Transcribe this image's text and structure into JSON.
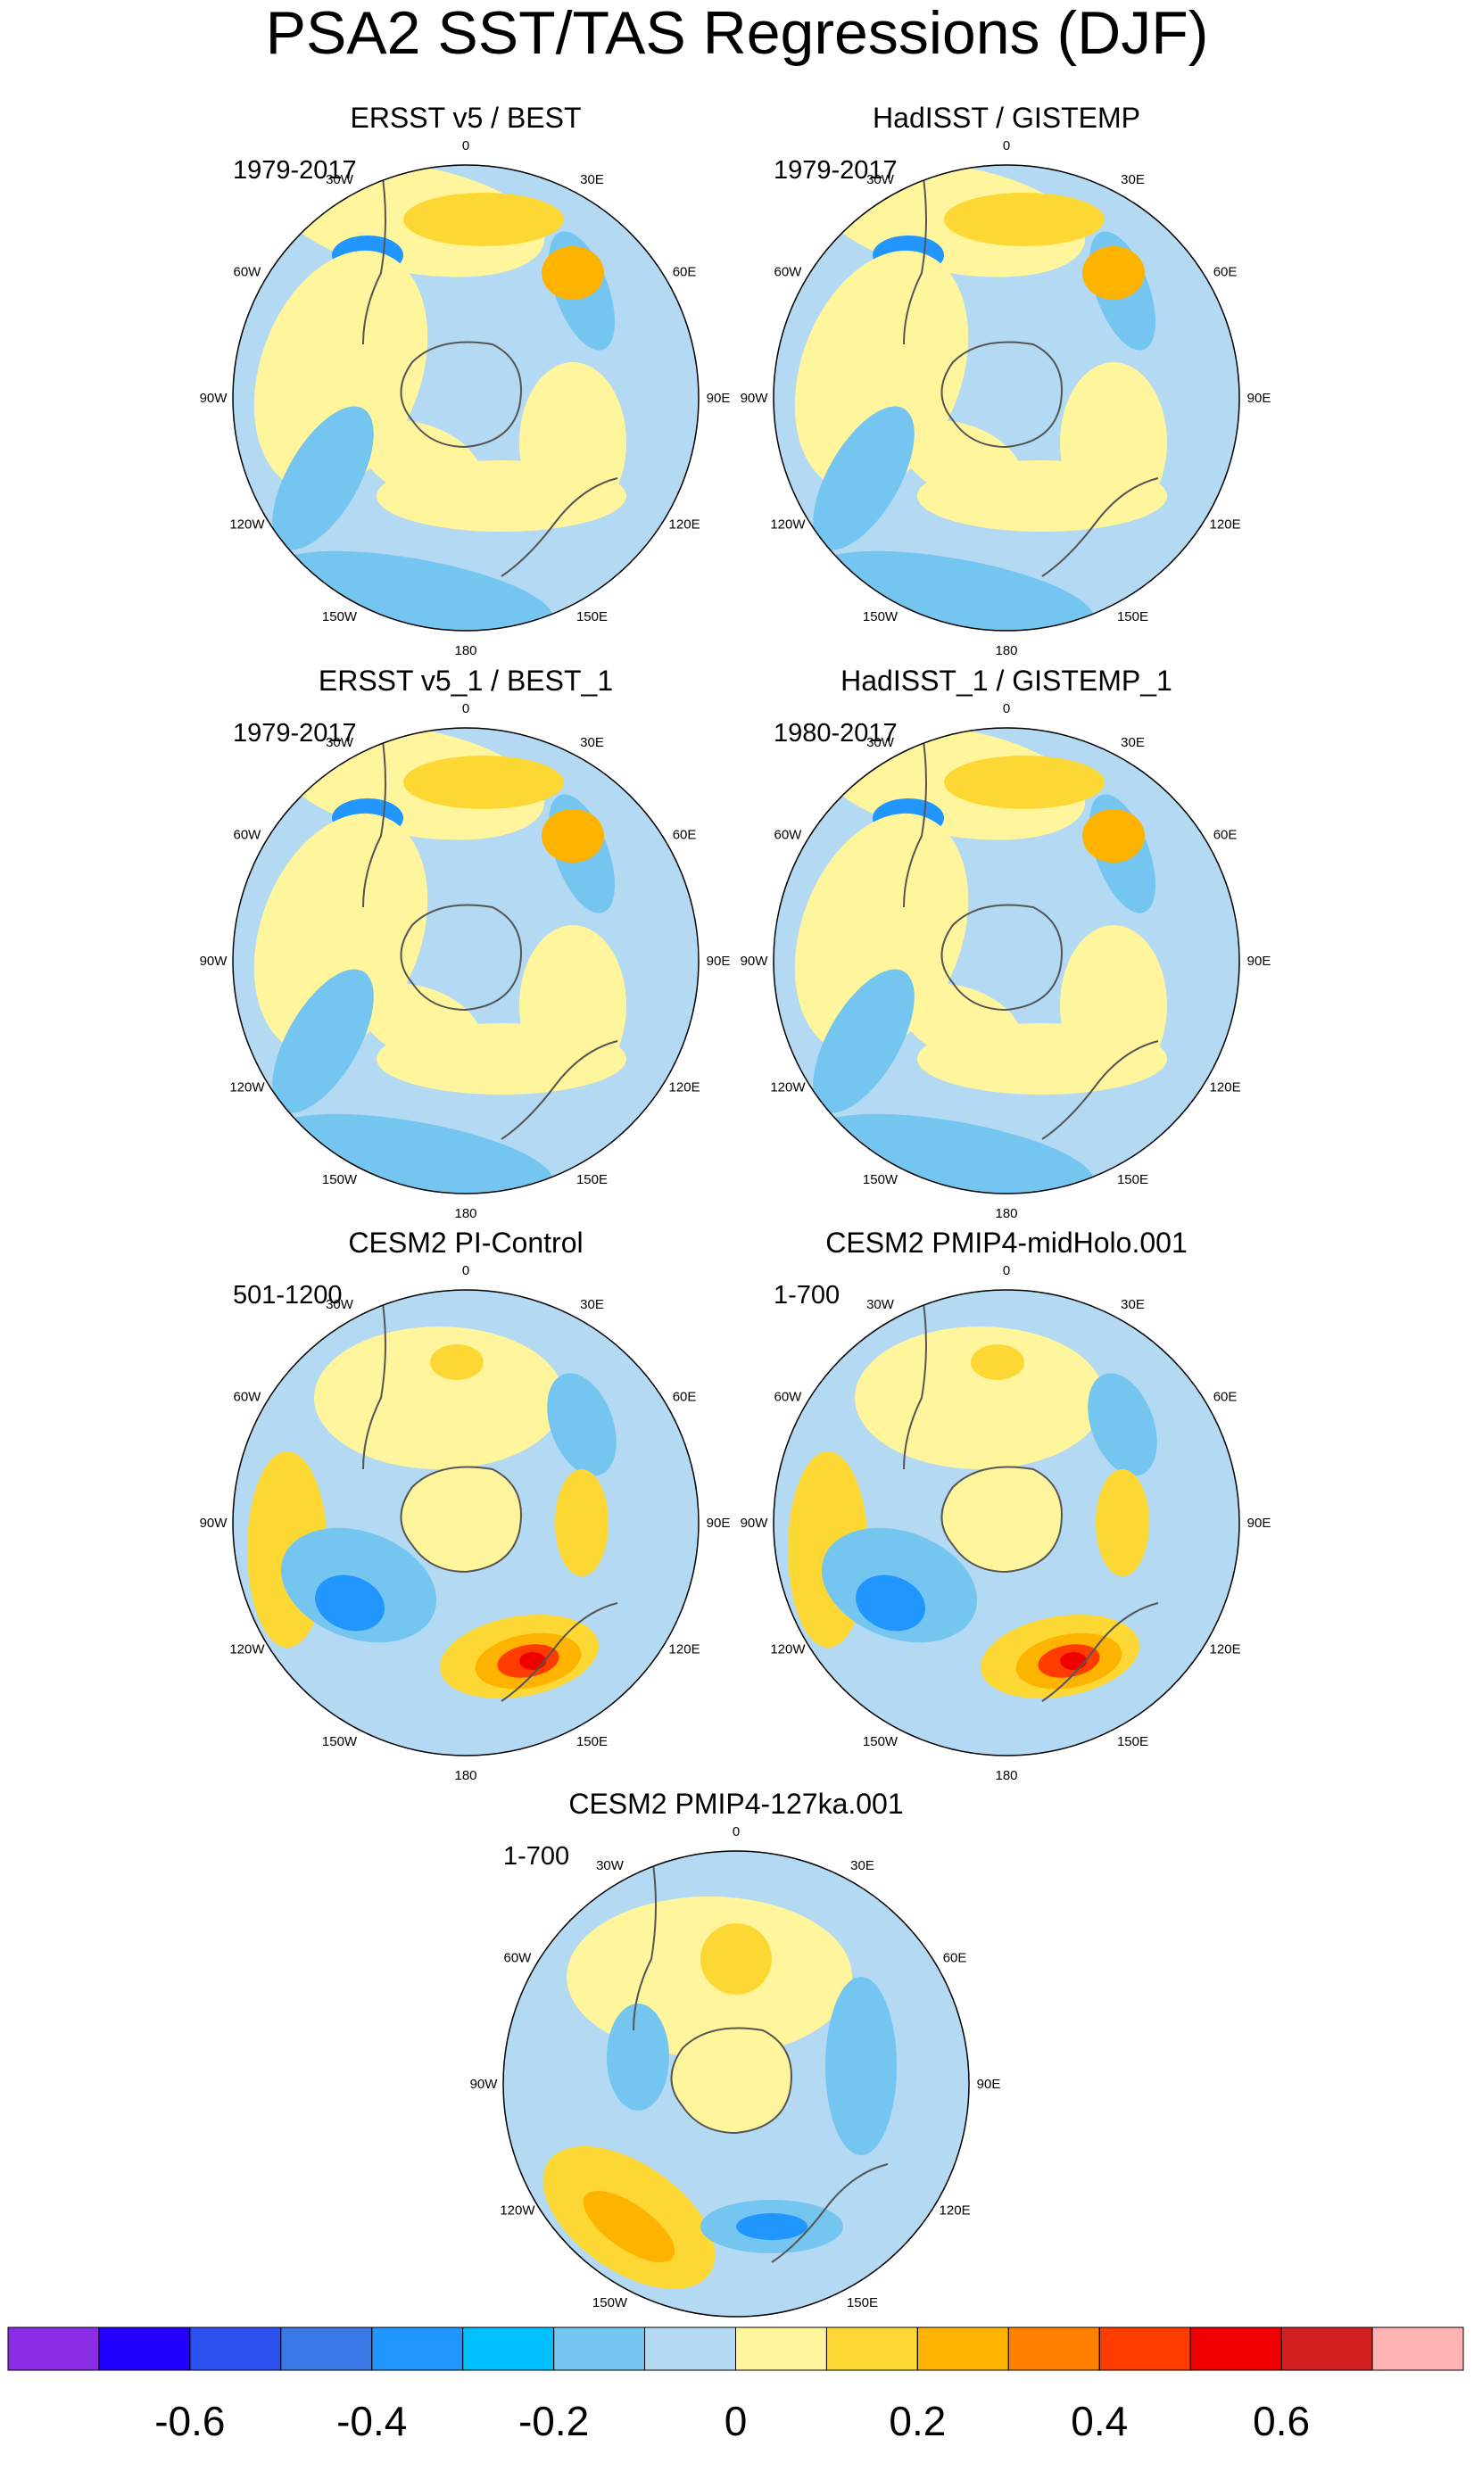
{
  "title": "PSA2 SST/TAS Regressions (DJF)",
  "lon_labels": [
    "0",
    "30E",
    "60E",
    "90E",
    "120E",
    "150E",
    "180",
    "150W",
    "120W",
    "90W",
    "60W",
    "30W"
  ],
  "panels": [
    {
      "title": "ERSST v5 / BEST",
      "period": "1979-2017"
    },
    {
      "title": "HadISST / GISTEMP",
      "period": "1979-2017"
    },
    {
      "title": "ERSST v5_1 / BEST_1",
      "period": "1979-2017"
    },
    {
      "title": "HadISST_1 / GISTEMP_1",
      "period": "1980-2017"
    },
    {
      "title": "CESM2 PI-Control",
      "period": "501-1200"
    },
    {
      "title": "CESM2 PMIP4-midHolo.001",
      "period": "1-700"
    },
    {
      "title": "CESM2 PMIP4-127ka.001",
      "period": "1-700"
    }
  ],
  "colorbar": {
    "colors": [
      "#8b2be6",
      "#2200ff",
      "#2c4ff0",
      "#3a78e8",
      "#2196ff",
      "#00c0ff",
      "#74c6f0",
      "#b3daf2",
      "#fff59d",
      "#fdd835",
      "#fdb300",
      "#ff8000",
      "#ff3c00",
      "#f00000",
      "#d21f1f",
      "#ffb3b3"
    ],
    "lim": [
      -0.8,
      0.8
    ],
    "ticks": [
      -0.6,
      -0.4,
      -0.2,
      0,
      0.2,
      0.4,
      0.6
    ]
  }
}
